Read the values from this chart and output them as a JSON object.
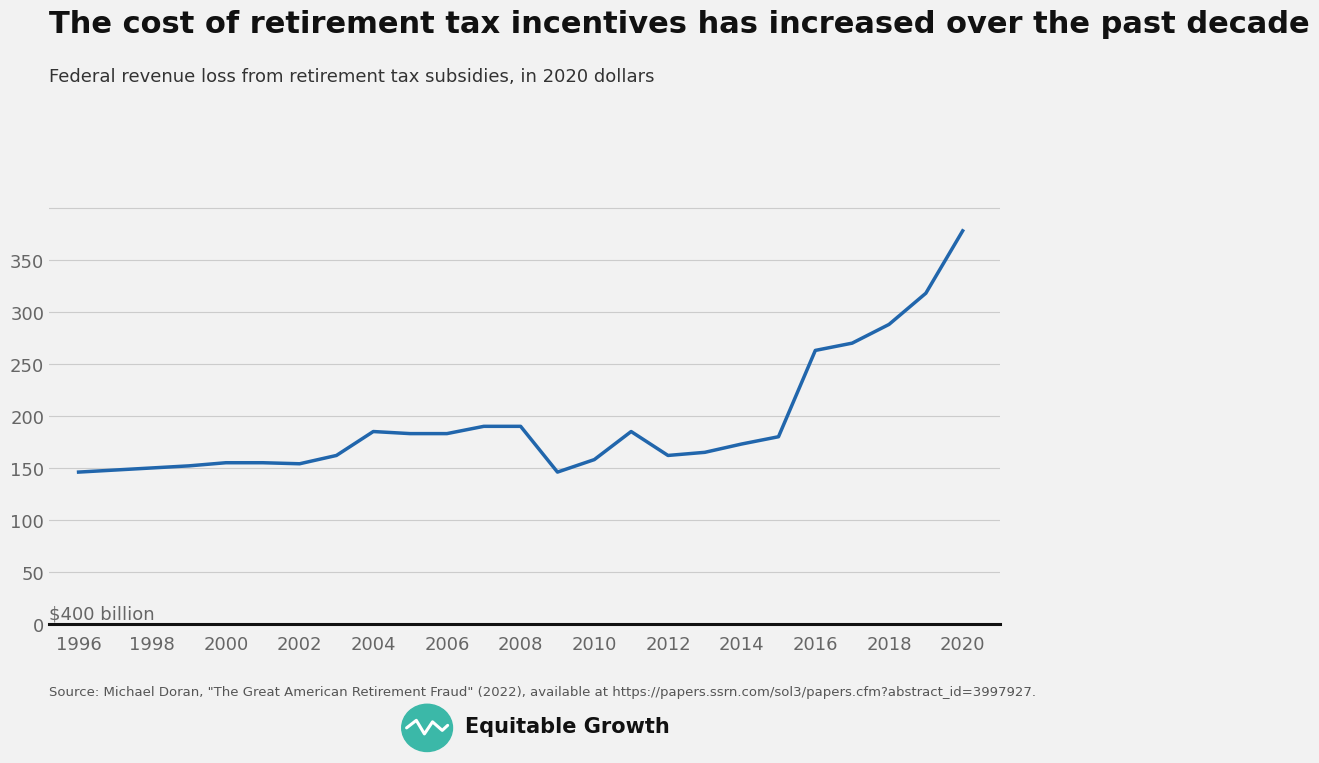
{
  "title": "The cost of retirement tax incentives has increased over the past decade",
  "subtitle": "Federal revenue loss from retirement tax subsidies, in 2020 dollars",
  "ylabel_top": "$400 billion",
  "source": "Source: Michael Doran, \"The Great American Retirement Fraud\" (2022), available at https://papers.ssrn.com/sol3/papers.cfm?abstract_id=3997927.",
  "line_color": "#2166ac",
  "line_width": 2.5,
  "background_color": "#f2f2f2",
  "years": [
    1996,
    1997,
    1998,
    1999,
    2000,
    2001,
    2002,
    2003,
    2004,
    2005,
    2006,
    2007,
    2008,
    2009,
    2010,
    2011,
    2012,
    2013,
    2014,
    2015,
    2016,
    2017,
    2018,
    2019,
    2020
  ],
  "values": [
    146,
    148,
    150,
    152,
    155,
    155,
    154,
    162,
    185,
    183,
    183,
    190,
    190,
    146,
    158,
    185,
    162,
    165,
    173,
    180,
    263,
    270,
    288,
    318,
    378
  ],
  "ylim": [
    0,
    420
  ],
  "yticks": [
    0,
    50,
    100,
    150,
    200,
    250,
    300,
    350,
    400
  ],
  "xticks": [
    1996,
    1998,
    2000,
    2002,
    2004,
    2006,
    2008,
    2010,
    2012,
    2014,
    2016,
    2018,
    2020
  ],
  "xlim": [
    1995.2,
    2021.0
  ],
  "title_fontsize": 22,
  "subtitle_fontsize": 13,
  "tick_fontsize": 13,
  "source_fontsize": 9.5,
  "logo_fontsize": 15,
  "grid_color": "#cccccc",
  "tick_color": "#666666"
}
